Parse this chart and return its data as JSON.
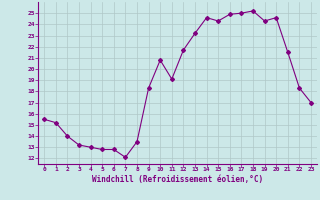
{
  "x": [
    0,
    1,
    2,
    3,
    4,
    5,
    6,
    7,
    8,
    9,
    10,
    11,
    12,
    13,
    14,
    15,
    16,
    17,
    18,
    19,
    20,
    21,
    22,
    23
  ],
  "y": [
    15.5,
    15.2,
    14.0,
    13.2,
    13.0,
    12.8,
    12.8,
    12.1,
    13.5,
    18.3,
    20.8,
    19.1,
    21.7,
    23.2,
    24.6,
    24.3,
    24.9,
    25.0,
    25.2,
    24.3,
    24.6,
    21.5,
    18.3,
    17.0
  ],
  "line_color": "#800080",
  "marker": "D",
  "marker_size": 2,
  "bg_color": "#cce8e8",
  "grid_color": "#b0c8c8",
  "tick_color": "#800080",
  "xlabel": "Windchill (Refroidissement éolien,°C)",
  "xlabel_color": "#800080",
  "ylabel_ticks": [
    12,
    13,
    14,
    15,
    16,
    17,
    18,
    19,
    20,
    21,
    22,
    23,
    24,
    25
  ],
  "ylim": [
    11.5,
    26.0
  ],
  "xlim": [
    -0.5,
    23.5
  ]
}
